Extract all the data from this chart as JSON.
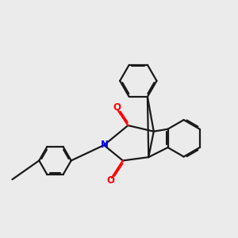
{
  "background_color": "#ebebeb",
  "bond_color": "#1a1a1a",
  "oxygen_color": "#ff0000",
  "nitrogen_color": "#0000ff",
  "line_width": 1.6,
  "figsize": [
    3.0,
    3.0
  ],
  "dpi": 100,
  "xlim": [
    0,
    10
  ],
  "ylim": [
    0,
    10
  ]
}
